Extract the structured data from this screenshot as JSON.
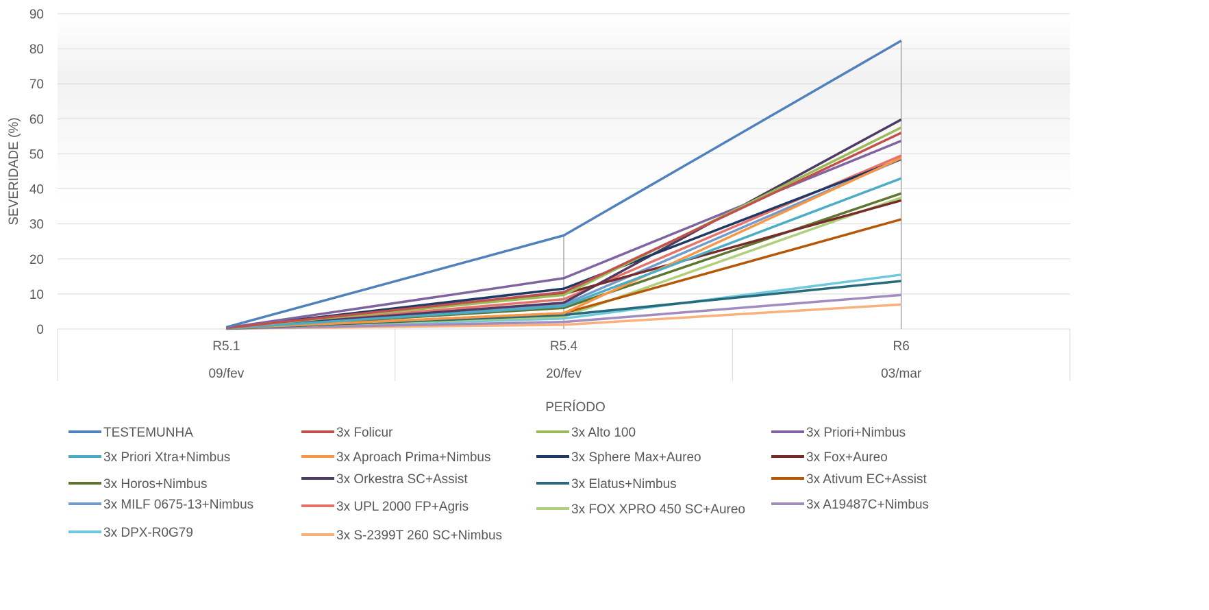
{
  "chart_data": {
    "type": "line",
    "xlabel": "PERÍODO",
    "ylabel": "SEVERIDADE (%)",
    "ylim": [
      0,
      90
    ],
    "yticks": [
      "0",
      "10",
      "20",
      "30",
      "40",
      "50",
      "60",
      "70",
      "80",
      "90"
    ],
    "categories": [
      "R5.1",
      "R5.4",
      "R6"
    ],
    "dates": [
      "09/fev",
      "20/fev",
      "03/mar"
    ],
    "grid": true,
    "legend_position": "bottom",
    "series": [
      {
        "name": "TESTEMUNHA",
        "color": "#4F81BD",
        "values": [
          0.5,
          26.7,
          82.3
        ]
      },
      {
        "name": "3x Folicur",
        "color": "#C0504D",
        "values": [
          0.3,
          10.5,
          56.0
        ]
      },
      {
        "name": "3x Alto 100",
        "color": "#9BBB59",
        "values": [
          0.3,
          9.7,
          57.5
        ]
      },
      {
        "name": "3x Priori+Nimbus",
        "color": "#8064A2",
        "values": [
          0.3,
          14.5,
          53.7
        ]
      },
      {
        "name": "3x Priori Xtra+Nimbus",
        "color": "#4BACC6",
        "values": [
          0.2,
          6.5,
          43.0
        ]
      },
      {
        "name": "3x Aproach Prima+Nimbus",
        "color": "#F79646",
        "values": [
          0.2,
          4.5,
          48.8
        ]
      },
      {
        "name": "3x Sphere Max+Aureo",
        "color": "#1F3864",
        "values": [
          0.3,
          11.5,
          48.5
        ]
      },
      {
        "name": "3x Fox+Aureo",
        "color": "#772C2A",
        "values": [
          0.3,
          10.0,
          36.7
        ]
      },
      {
        "name": "3x Horos+Nimbus",
        "color": "#5F7530",
        "values": [
          0.2,
          6.0,
          38.7
        ]
      },
      {
        "name": "3x Orkestra SC+Assist",
        "color": "#4D3B62",
        "values": [
          0.3,
          7.5,
          59.8
        ]
      },
      {
        "name": "3x Elatus+Nimbus",
        "color": "#276A7C",
        "values": [
          0.1,
          4.0,
          13.7
        ]
      },
      {
        "name": "3x Ativum EC+Assist",
        "color": "#B65708",
        "values": [
          0.2,
          4.5,
          31.3
        ]
      },
      {
        "name": "3x MILF 0675-13+Nimbus",
        "color": "#729ACA",
        "values": [
          0.2,
          7.0,
          48.5
        ]
      },
      {
        "name": "3x UPL 2000 FP+Agris",
        "color": "#E6736B",
        "values": [
          0.2,
          8.5,
          49.5
        ]
      },
      {
        "name": "3x FOX XPRO 450 SC+Aureo",
        "color": "#AFCF7B",
        "values": [
          0.2,
          3.5,
          37.5
        ]
      },
      {
        "name": "3x A19487C+Nimbus",
        "color": "#A18BBF",
        "values": [
          0.1,
          2.0,
          9.7
        ]
      },
      {
        "name": "3x DPX-R0G79",
        "color": "#6FC8DC",
        "values": [
          0.1,
          3.0,
          15.5
        ]
      },
      {
        "name": "3x S-2399T 260 SC+Nimbus",
        "color": "#F9B07B",
        "values": [
          0.1,
          1.2,
          7.0
        ]
      }
    ]
  }
}
